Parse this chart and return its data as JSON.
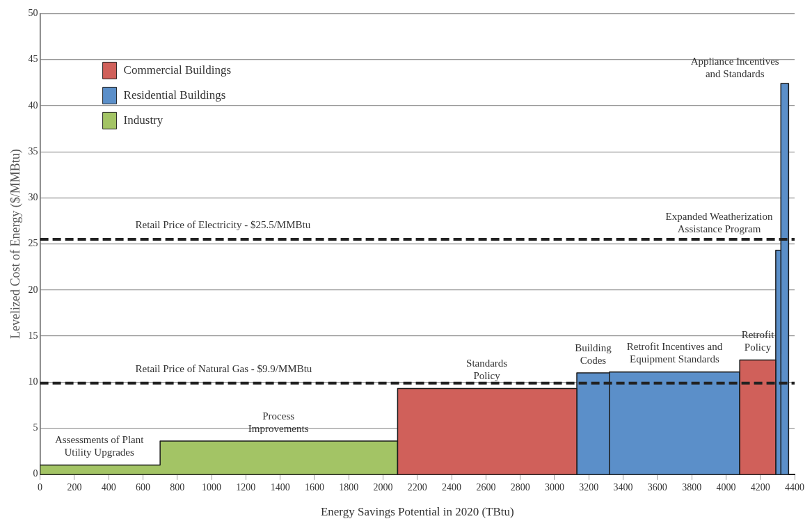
{
  "chart_data": {
    "type": "area",
    "xlabel": "Energy Savings Potential in 2020 (TBtu)",
    "ylabel": "Levelized Cost of Energy ($/MMBtu)",
    "xlim": [
      0,
      4400
    ],
    "xticks": [
      0,
      200,
      400,
      600,
      800,
      1000,
      1200,
      1400,
      1600,
      1800,
      2000,
      2200,
      2400,
      2600,
      2800,
      3000,
      3200,
      3400,
      3600,
      3800,
      4000,
      4200,
      4400
    ],
    "ylim": [
      0,
      50
    ],
    "yticks": [
      0,
      5,
      10,
      15,
      20,
      25,
      30,
      35,
      40,
      45,
      50
    ],
    "grid": "y",
    "legend": "top left",
    "series": [
      {
        "name": "Commercial Buildings",
        "color": "#d0605a",
        "x": [
          2085,
          2085,
          3130,
          3130,
          3600,
          4080,
          4080,
          4290,
          4290
        ],
        "values": [
          0,
          9.3,
          9.3,
          0,
          null,
          0,
          12.4,
          12.4,
          0
        ]
      },
      {
        "name": "Residential Buildings",
        "color": "#5b8fc9",
        "x": [
          3130,
          3130,
          3320,
          3320,
          3320,
          4080,
          4080,
          4150,
          4290,
          4290,
          4320,
          4320,
          4320,
          4365,
          4365
        ],
        "values": [
          0,
          11,
          11,
          0,
          11.1,
          11.1,
          0,
          null,
          0,
          24.3,
          24.3,
          0,
          42.4,
          42.4,
          0
        ]
      },
      {
        "name": "Industry",
        "color": "#a3c465",
        "x": [
          0,
          0,
          700,
          700,
          2085,
          2085
        ],
        "values": [
          0,
          1,
          1,
          3.6,
          3.6,
          0
        ]
      }
    ],
    "ref_lines": [
      {
        "axis": "y",
        "value": 25.5,
        "label": "Retail Price of Electricity - $25.5/MMBtu",
        "color": "#222222",
        "line_style": "dashed"
      },
      {
        "axis": "y",
        "value": 9.9,
        "label": "Retail Price of Natural Gas - $9.9/MMBtu",
        "color": "#222222",
        "line_style": "dashed"
      }
    ],
    "annotations": [
      {
        "text": "Assessments of Plant\nUtility Upgrades",
        "x": 345,
        "y": 1
      },
      {
        "text": "Process\nImprovements",
        "x": 1390,
        "y": 3.6
      },
      {
        "text": "Standards\nPolicy",
        "x": 2605,
        "y": 9.3
      },
      {
        "text": "Building\nCodes",
        "x": 3225,
        "y": 11
      },
      {
        "text": "Retrofit Incentives and\nEquipment Standards",
        "x": 3700,
        "y": 11.1
      },
      {
        "text": "Retrofit\nPolicy",
        "x": 4185,
        "y": 12.4
      },
      {
        "text": "Expanded Weatherization\nAssistance Program",
        "x": 4305,
        "y": 25.5
      },
      {
        "text": "Appliance Incentives\nand Standards",
        "x": 4342,
        "y": 42.4
      }
    ]
  }
}
